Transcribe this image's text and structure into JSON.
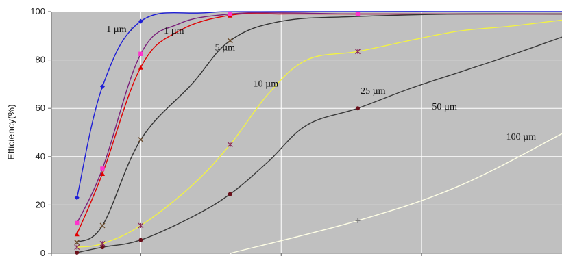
{
  "chart_data": {
    "type": "line",
    "title": "",
    "xlabel": "",
    "ylabel": "Efficiency(%)",
    "ylim": [
      0,
      100
    ],
    "xlim": [
      0,
      10
    ],
    "yticks": [
      "0",
      "20",
      "40",
      "60",
      "80",
      "100"
    ],
    "grid": true,
    "legend": "inline labels",
    "colors": {
      "plot_background": "#c0c0c0",
      "grid": "#ffffff"
    },
    "series": [
      {
        "name": "1 µm +",
        "color": "#1f1fd6",
        "marker": "diamond",
        "points": [
          [
            0.5,
            23
          ],
          [
            1.0,
            69
          ],
          [
            1.75,
            96
          ],
          [
            3.0,
            99.5
          ],
          [
            4.5,
            100
          ],
          [
            10.0,
            100
          ]
        ],
        "markers": [
          0,
          1,
          2
        ]
      },
      {
        "name": "1 µm",
        "color": "#e00000",
        "marker": "triangle",
        "points": [
          [
            0.5,
            8
          ],
          [
            1.0,
            33
          ],
          [
            1.75,
            77
          ],
          [
            2.5,
            92
          ],
          [
            3.5,
            98.5
          ],
          [
            4.5,
            99
          ],
          [
            6.0,
            99
          ],
          [
            8.0,
            99
          ],
          [
            10.0,
            99
          ]
        ],
        "markers": [
          0,
          1,
          2,
          4
        ]
      },
      {
        "name": "5 µm",
        "color": "#7a1f7a",
        "marker": "square",
        "points": [
          [
            0.5,
            12.5
          ],
          [
            1.0,
            35
          ],
          [
            1.75,
            82.5
          ],
          [
            2.5,
            95
          ],
          [
            3.5,
            99
          ],
          [
            4.5,
            99.5
          ],
          [
            6.0,
            99
          ],
          [
            8.0,
            99
          ],
          [
            10.0,
            99
          ]
        ],
        "markers": [
          0,
          1,
          2,
          4,
          6
        ]
      },
      {
        "name": "10 µm",
        "color": "#333333",
        "marker": "cross",
        "points": [
          [
            0.5,
            4.5
          ],
          [
            1.0,
            11.5
          ],
          [
            1.75,
            47
          ],
          [
            2.75,
            70
          ],
          [
            3.5,
            88
          ],
          [
            4.5,
            96
          ],
          [
            6.0,
            98
          ],
          [
            8.0,
            99
          ],
          [
            10.0,
            99
          ]
        ],
        "markers": [
          0,
          1,
          2,
          4
        ]
      },
      {
        "name": "25 µm",
        "color": "#f2f244",
        "marker": "star",
        "points": [
          [
            0.5,
            2.5
          ],
          [
            1.0,
            4
          ],
          [
            1.75,
            11.5
          ],
          [
            2.75,
            28
          ],
          [
            3.5,
            45
          ],
          [
            4.25,
            66
          ],
          [
            5.0,
            80
          ],
          [
            6.0,
            83.5
          ],
          [
            7.0,
            88
          ],
          [
            8.0,
            92
          ],
          [
            9.0,
            94
          ],
          [
            10.0,
            96.5
          ]
        ],
        "markers": [
          0,
          1,
          2,
          4,
          7
        ]
      },
      {
        "name": "50 µm",
        "color": "#3a3a3a",
        "marker": "circle",
        "points": [
          [
            0.5,
            0.3
          ],
          [
            1.0,
            2.5
          ],
          [
            1.75,
            5.5
          ],
          [
            2.75,
            15
          ],
          [
            3.5,
            24.5
          ],
          [
            4.25,
            38
          ],
          [
            5.0,
            53
          ],
          [
            6.0,
            60
          ],
          [
            7.0,
            68
          ],
          [
            8.0,
            75
          ],
          [
            9.0,
            82
          ],
          [
            10.0,
            89.5
          ]
        ],
        "markers": [
          0,
          1,
          2,
          4,
          7
        ]
      },
      {
        "name": "100 µm",
        "color": "#ffffe6",
        "marker": "plus",
        "points": [
          [
            3.5,
            0
          ],
          [
            6.0,
            13.5
          ],
          [
            8.0,
            28
          ],
          [
            10.0,
            49.5
          ]
        ],
        "markers": [
          1
        ]
      }
    ],
    "labels": [
      {
        "text": "1 µm +",
        "x": 1.35,
        "y": 91.5
      },
      {
        "text": "1 µm",
        "x": 2.4,
        "y": 91
      },
      {
        "text": "5 µm",
        "x": 3.4,
        "y": 84
      },
      {
        "text": "10 µm",
        "x": 4.2,
        "y": 69
      },
      {
        "text": "25 µm",
        "x": 6.3,
        "y": 66
      },
      {
        "text": "50 µm",
        "x": 7.7,
        "y": 59.5
      },
      {
        "text": "100 µm",
        "x": 9.2,
        "y": 47
      }
    ]
  }
}
